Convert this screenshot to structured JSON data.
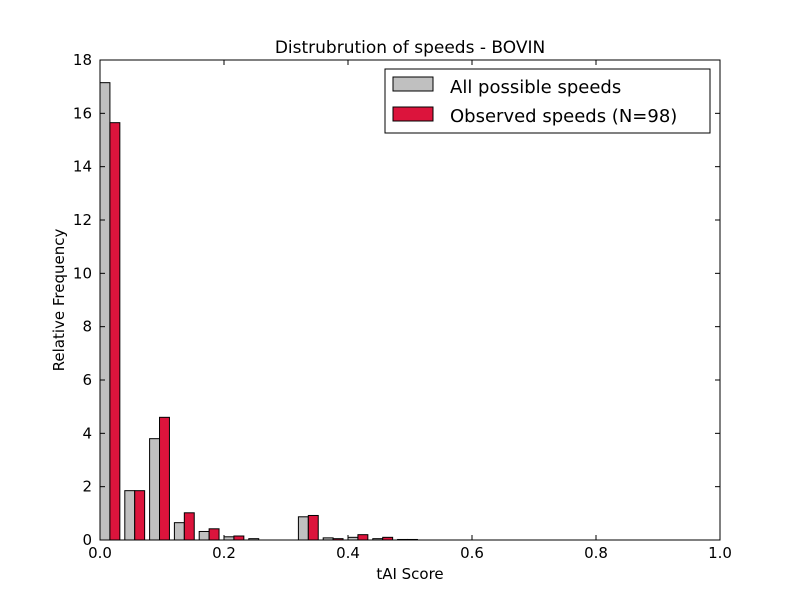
{
  "chart_data": {
    "type": "bar",
    "title": "Distrubrution of speeds - BOVIN",
    "xlabel": "tAI Score",
    "ylabel": "Relative Frequency",
    "xlim": [
      0.0,
      1.0
    ],
    "ylim": [
      0,
      18
    ],
    "xticks": [
      "0.0",
      "0.2",
      "0.4",
      "0.6",
      "0.8",
      "1.0"
    ],
    "yticks": [
      "0",
      "2",
      "4",
      "6",
      "8",
      "10",
      "12",
      "14",
      "16",
      "18"
    ],
    "legend_position": "top-right",
    "bin_edges": [
      0.0,
      0.04,
      0.08,
      0.12,
      0.16,
      0.2,
      0.24,
      0.28,
      0.32,
      0.36,
      0.4,
      0.44,
      0.48,
      0.52,
      0.56,
      0.6,
      0.64,
      0.68,
      0.72,
      0.76,
      0.8,
      0.84,
      0.88,
      0.92,
      0.96,
      1.0
    ],
    "series": [
      {
        "name": "All possible speeds",
        "color": "#c0c0c0",
        "values": [
          17.15,
          1.85,
          3.8,
          0.65,
          0.32,
          0.12,
          0.05,
          0.0,
          0.87,
          0.08,
          0.1,
          0.05,
          0.02,
          0,
          0,
          0,
          0,
          0,
          0,
          0,
          0,
          0,
          0,
          0,
          0
        ]
      },
      {
        "name": "Observed speeds (N=98)",
        "color": "#dc143c",
        "values": [
          15.65,
          1.85,
          4.6,
          1.02,
          0.42,
          0.15,
          0.0,
          0.0,
          0.92,
          0.05,
          0.2,
          0.1,
          0.02,
          0,
          0,
          0,
          0,
          0,
          0,
          0,
          0,
          0,
          0,
          0,
          0
        ]
      }
    ]
  }
}
